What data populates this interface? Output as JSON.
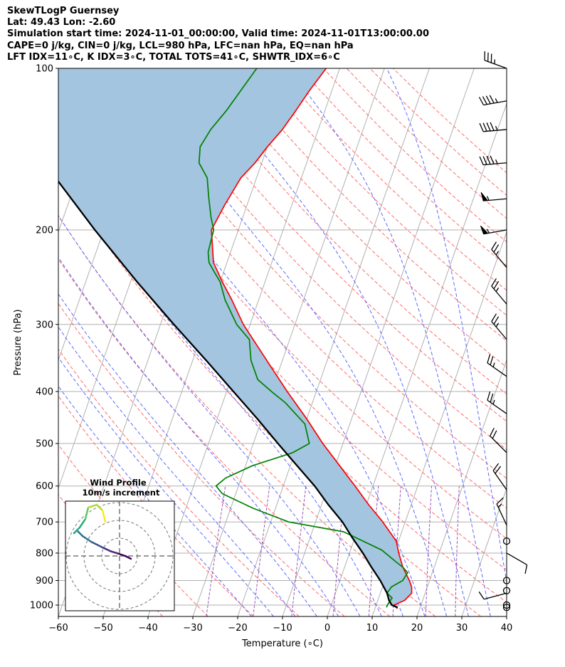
{
  "header": {
    "line1": "SkewTLogP Guernsey",
    "line2": "Lat: 49.43   Lon: -2.60",
    "line3": "Simulation start time: 2024-11-01_00:00:00, Valid time: 2024-11-01T13:00:00.00",
    "line4": "CAPE=0 j/kg, CIN=0 j/kg, LCL=980 hPa, LFC=nan hPa, EQ=nan hPa",
    "line5": "LFT IDX=11∘C, K IDX=3∘C, TOTAL TOTS=41∘C, SHWTR_IDX=6∘C"
  },
  "colors": {
    "temperature": "#ff0000",
    "dewpoint": "#008000",
    "parcel": "#000000",
    "cape_fill": "#a3c5e0",
    "dry_adiabat": "#ff6a6a",
    "moist_adiabat": "#5b6bff",
    "mixing_ratio": "#9b59b6",
    "isotherm": "#b0b0b0"
  },
  "chart_data": {
    "type": "line",
    "subtype": "skew-t log-p",
    "xlabel": "Temperature (∘C)",
    "ylabel": "Pressure (hPa)",
    "xlim": [
      -60,
      40
    ],
    "ylim": [
      1050,
      100
    ],
    "yscale": "log",
    "x_ticks": [
      -60,
      -50,
      -40,
      -30,
      -20,
      -10,
      0,
      10,
      20,
      30,
      40
    ],
    "x_tick_labels": [
      "−60",
      "−50",
      "−40",
      "−30",
      "−20",
      "−10",
      "0",
      "10",
      "20",
      "30",
      "40"
    ],
    "y_ticks": [
      100,
      200,
      300,
      400,
      500,
      600,
      700,
      800,
      900,
      1000
    ],
    "y_tick_labels": [
      "100",
      "200",
      "300",
      "400",
      "500",
      "600",
      "700",
      "800",
      "900",
      "1000"
    ],
    "grid": true,
    "series": [
      {
        "id": "temperature",
        "pressure": [
          1015,
          1000,
          980,
          950,
          925,
          900,
          850,
          800,
          760,
          700,
          650,
          600,
          550,
          500,
          450,
          400,
          350,
          300,
          270,
          250,
          230,
          200,
          180,
          160,
          150,
          140,
          130,
          120,
          110,
          100
        ],
        "temperature": [
          15.0,
          14.0,
          16.0,
          17.0,
          16.5,
          15.5,
          13.0,
          11.0,
          9.5,
          5.0,
          0.5,
          -4.0,
          -9.0,
          -14.5,
          -20.0,
          -26.5,
          -33.5,
          -41.5,
          -46.0,
          -49.5,
          -53.0,
          -56.0,
          -55.0,
          -53.5,
          -51.5,
          -50.0,
          -48.0,
          -46.5,
          -45.0,
          -43.0
        ]
      },
      {
        "id": "dewpoint",
        "pressure": [
          1010,
          1000,
          970,
          950,
          925,
          900,
          870,
          850,
          830,
          790,
          730,
          700,
          660,
          620,
          600,
          580,
          550,
          520,
          500,
          460,
          420,
          400,
          380,
          350,
          320,
          300,
          270,
          250,
          240,
          230,
          220,
          200,
          190,
          175,
          160,
          150,
          140,
          130,
          120,
          100
        ],
        "temperature": [
          12.5,
          12.5,
          13.0,
          11.5,
          12.0,
          14.0,
          14.5,
          13.0,
          11.0,
          7.0,
          -3.0,
          -16.0,
          -25.0,
          -33.0,
          -35.0,
          -33.5,
          -28.5,
          -20.5,
          -17.5,
          -20.0,
          -26.0,
          -30.0,
          -34.0,
          -37.0,
          -39.0,
          -43.0,
          -47.5,
          -50.0,
          -52.0,
          -54.0,
          -55.0,
          -55.5,
          -57.0,
          -59.0,
          -61.0,
          -64.0,
          -65.0,
          -64.0,
          -62.0,
          -58.5
        ]
      },
      {
        "id": "parcel",
        "pressure": [
          1010,
          1000,
          980,
          950,
          900,
          850,
          800,
          750,
          700,
          650,
          600,
          550,
          500,
          450,
          400,
          350,
          300,
          250,
          200,
          150,
          100
        ],
        "temperature": [
          15.0,
          13.5,
          12.5,
          11.5,
          9.0,
          6.0,
          3.0,
          -0.5,
          -4.0,
          -8.5,
          -13.0,
          -18.5,
          -24.5,
          -31.0,
          -38.5,
          -47.0,
          -57.0,
          -68.5,
          -82.0,
          -98.5,
          -121.0
        ]
      }
    ],
    "wind_barbs": [
      {
        "pressure": 100,
        "speed_kt": 35,
        "dir_deg": 290
      },
      {
        "pressure": 115,
        "speed_kt": 45,
        "dir_deg": 260
      },
      {
        "pressure": 130,
        "speed_kt": 45,
        "dir_deg": 265
      },
      {
        "pressure": 150,
        "speed_kt": 45,
        "dir_deg": 265
      },
      {
        "pressure": 175,
        "speed_kt": 55,
        "dir_deg": 265
      },
      {
        "pressure": 200,
        "speed_kt": 55,
        "dir_deg": 260
      },
      {
        "pressure": 235,
        "speed_kt": 25,
        "dir_deg": 320
      },
      {
        "pressure": 275,
        "speed_kt": 25,
        "dir_deg": 320
      },
      {
        "pressure": 320,
        "speed_kt": 25,
        "dir_deg": 320
      },
      {
        "pressure": 375,
        "speed_kt": 25,
        "dir_deg": 305
      },
      {
        "pressure": 440,
        "speed_kt": 25,
        "dir_deg": 305
      },
      {
        "pressure": 520,
        "speed_kt": 20,
        "dir_deg": 315
      },
      {
        "pressure": 610,
        "speed_kt": 20,
        "dir_deg": 325
      },
      {
        "pressure": 710,
        "speed_kt": 15,
        "dir_deg": 335
      },
      {
        "pressure": 800,
        "speed_kt": 10,
        "dir_deg": 120
      },
      {
        "pressure": 950,
        "speed_kt": 10,
        "dir_deg": 255
      }
    ],
    "calm_levels": [
      760,
      900,
      940,
      1000,
      1010
    ],
    "wind_profile": {
      "title": "Wind Profile",
      "subtitle": "10m/s increment",
      "rings": [
        1,
        2,
        3
      ],
      "u": [
        2.0,
        1.0,
        -0.5,
        -1.5,
        -3.0,
        -5.0,
        -6.5,
        -7.5,
        -8.0,
        -7.0,
        -6.0,
        -5.5,
        -4.0,
        -3.0,
        -2.5
      ],
      "v": [
        -0.5,
        0.0,
        0.5,
        0.8,
        1.5,
        2.5,
        3.5,
        4.5,
        4.0,
        5.0,
        6.5,
        8.5,
        9.0,
        8.0,
        6.0
      ]
    }
  }
}
